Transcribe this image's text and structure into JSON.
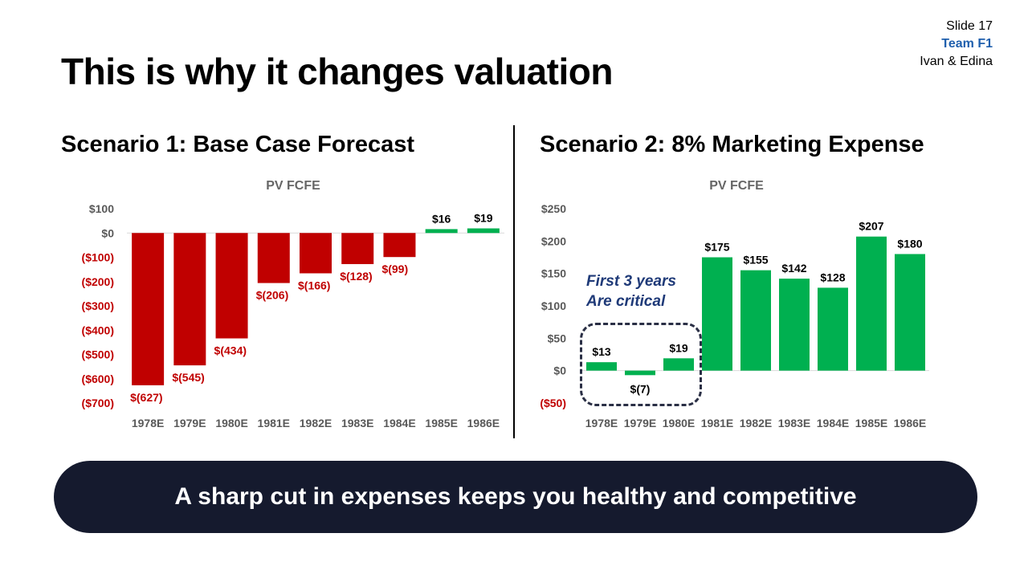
{
  "slide": {
    "number": "Slide 17",
    "team": "Team F1",
    "authors": "Ivan & Edina"
  },
  "title": "This is why it changes valuation",
  "scenario1": {
    "heading": "Scenario 1: Base Case Forecast"
  },
  "scenario2": {
    "heading": "Scenario 2: 8% Marketing Expense",
    "note_line1": "First 3 years",
    "note_line2": "Are critical"
  },
  "banner": "A sharp cut in expenses keeps you healthy and competitive",
  "colors": {
    "negative": "#c00000",
    "positive": "#00b050",
    "banner": "#151a2e",
    "team": "#1f5fad"
  },
  "chart_data": [
    {
      "type": "bar",
      "title": "PV FCFE",
      "categories": [
        "1978E",
        "1979E",
        "1980E",
        "1981E",
        "1982E",
        "1983E",
        "1984E",
        "1985E",
        "1986E"
      ],
      "values": [
        -627,
        -545,
        -434,
        -206,
        -166,
        -128,
        -99,
        16,
        19
      ],
      "data_labels": [
        "$(627)",
        "$(545)",
        "$(434)",
        "$(206)",
        "$(166)",
        "$(128)",
        "$(99)",
        "$16",
        "$19"
      ],
      "yticks": [
        100,
        0,
        -100,
        -200,
        -300,
        -400,
        -500,
        -600,
        -700
      ],
      "ytick_labels": [
        "$100",
        "$0",
        "($100)",
        "($200)",
        "($300)",
        "($400)",
        "($500)",
        "($600)",
        "($700)"
      ],
      "ylim": [
        -700,
        100
      ],
      "grid": false
    },
    {
      "type": "bar",
      "title": "PV FCFE",
      "categories": [
        "1978E",
        "1979E",
        "1980E",
        "1981E",
        "1982E",
        "1983E",
        "1984E",
        "1985E",
        "1986E"
      ],
      "values": [
        13,
        -7,
        19,
        175,
        155,
        142,
        128,
        207,
        180
      ],
      "data_labels": [
        "$13",
        "$(7)",
        "$19",
        "$175",
        "$155",
        "$142",
        "$128",
        "$207",
        "$180"
      ],
      "yticks": [
        250,
        200,
        150,
        100,
        50,
        0,
        -50
      ],
      "ytick_labels": [
        "$250",
        "$200",
        "$150",
        "$100",
        "$50",
        "$0",
        "($50)"
      ],
      "ylim": [
        -50,
        250
      ],
      "grid": false
    }
  ]
}
